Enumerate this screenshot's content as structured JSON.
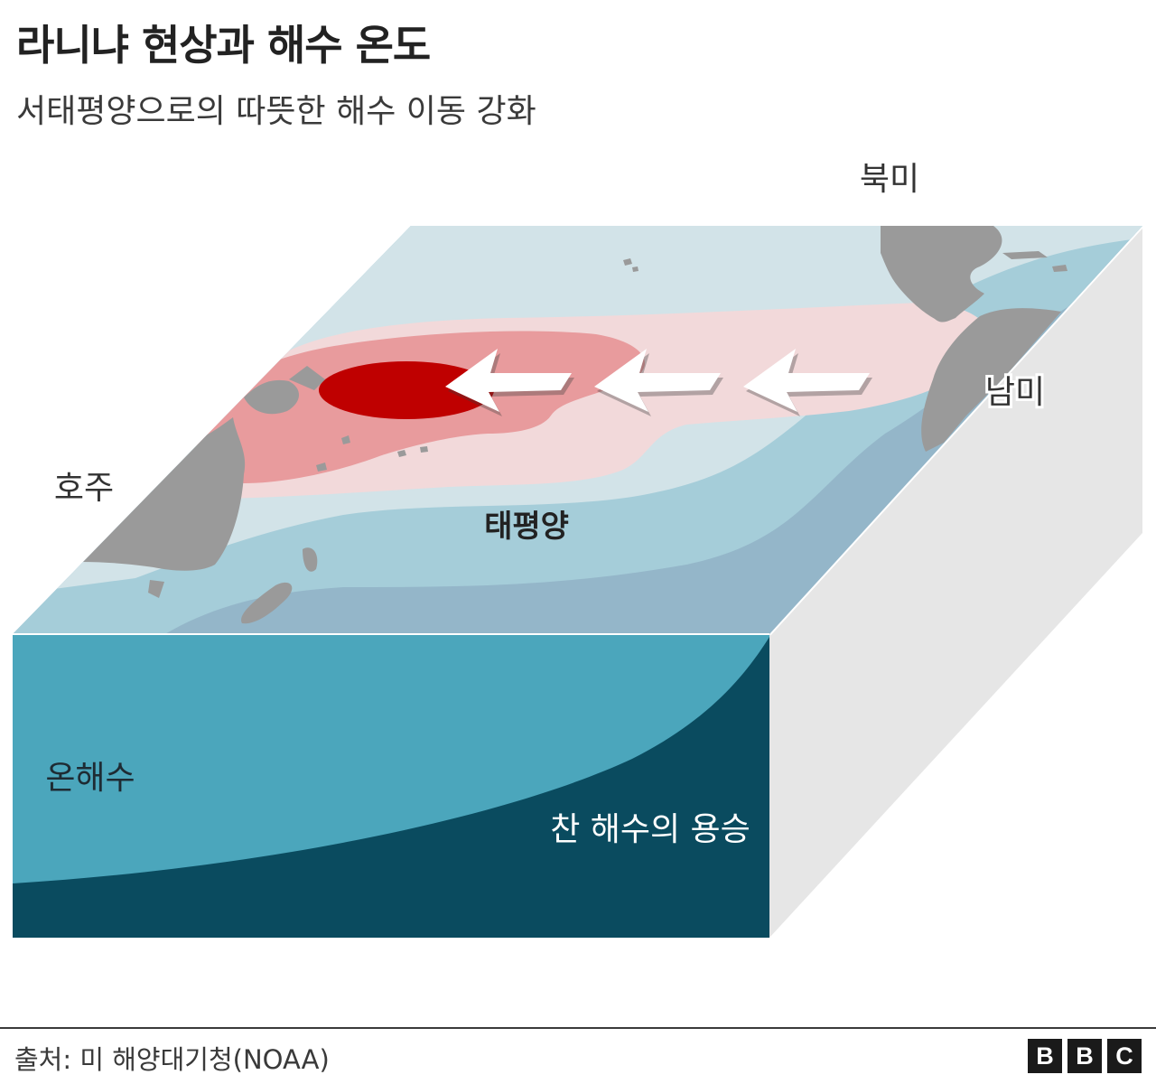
{
  "header": {
    "title": "라니냐 현상과 해수 온도",
    "subtitle": "서태평양으로의 따뜻한 해수 이동 강화"
  },
  "labels": {
    "north_america": "북미",
    "south_america": "남미",
    "australia": "호주",
    "pacific": "태평양",
    "warm_water": "온해수",
    "cold_upwelling": "찬 해수의 용승"
  },
  "colors": {
    "deep_warm_core": "#bf0000",
    "warm_mid": "#e89b9d",
    "warm_light": "#f2d9da",
    "cool_pale": "#d2e3e8",
    "cool_mid": "#a5cdd9",
    "cool_deep": "#94b6c9",
    "land": "#9a9a9a",
    "warm_water_section": "#4ba6bc",
    "cold_water_section": "#0a4b5f",
    "box_side": "#e6e6e6"
  },
  "icons": {
    "arrows": "left-arrow-icon"
  },
  "footer": {
    "source": "출처: 미 해양대기청(NOAA)",
    "logo_letters": [
      "B",
      "B",
      "C"
    ]
  }
}
